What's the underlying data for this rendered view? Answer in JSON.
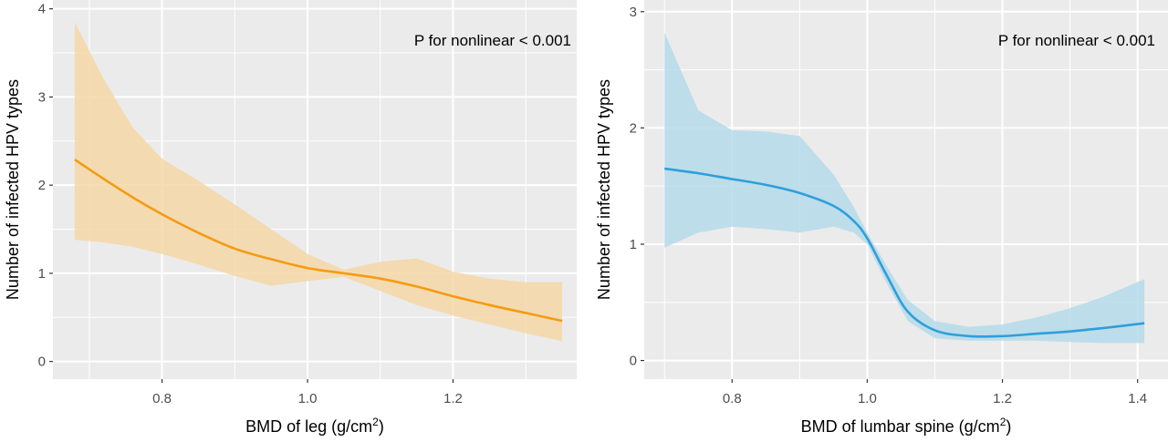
{
  "chart_data": [
    {
      "type": "line",
      "xlabel_main": "BMD of leg (g/cm",
      "xlabel_sup": "2",
      "xlabel_end": ")",
      "ylabel": "Number of infected HPV types",
      "annotation": "P for nonlinear < 0.001",
      "xlim": [
        0.65,
        1.37
      ],
      "ylim": [
        -0.2,
        4.1
      ],
      "xticks": [
        0.8,
        1.0,
        1.2
      ],
      "xtick_labels": [
        "0.8",
        "1.0",
        "1.2"
      ],
      "yticks": [
        0,
        1,
        2,
        3,
        4
      ],
      "ytick_labels": [
        "0",
        "1",
        "2",
        "3",
        "4"
      ],
      "grid": true,
      "line_color": "#F39C12",
      "band_color": "#F6D7A7",
      "x": [
        0.68,
        0.72,
        0.76,
        0.8,
        0.85,
        0.9,
        0.95,
        1.0,
        1.05,
        1.1,
        1.15,
        1.2,
        1.25,
        1.3,
        1.35
      ],
      "y": [
        2.29,
        2.07,
        1.86,
        1.67,
        1.46,
        1.28,
        1.16,
        1.06,
        1.0,
        0.94,
        0.85,
        0.74,
        0.64,
        0.55,
        0.46
      ],
      "lower": [
        1.38,
        1.35,
        1.3,
        1.22,
        1.1,
        0.97,
        0.86,
        0.91,
        0.96,
        0.8,
        0.64,
        0.52,
        0.42,
        0.32,
        0.23
      ],
      "upper": [
        3.85,
        3.2,
        2.65,
        2.3,
        2.05,
        1.78,
        1.5,
        1.22,
        1.04,
        1.13,
        1.17,
        1.02,
        0.94,
        0.9,
        0.9
      ]
    },
    {
      "type": "line",
      "xlabel_main": "BMD of lumbar spine (g/cm",
      "xlabel_sup": "2",
      "xlabel_end": ")",
      "ylabel": "Number of infected HPV types",
      "annotation": "P for nonlinear < 0.001",
      "xlim": [
        0.67,
        1.445
      ],
      "ylim": [
        -0.16,
        3.1
      ],
      "xticks": [
        0.8,
        1.0,
        1.2,
        1.4
      ],
      "xtick_labels": [
        "0.8",
        "1.0",
        "1.2",
        "1.4"
      ],
      "yticks": [
        0,
        1,
        2,
        3
      ],
      "ytick_labels": [
        "0",
        "1",
        "2",
        "3"
      ],
      "grid": true,
      "line_color": "#2E9FDB",
      "band_color": "#B5DAEA",
      "x": [
        0.7,
        0.75,
        0.8,
        0.85,
        0.9,
        0.95,
        0.98,
        1.0,
        1.03,
        1.06,
        1.1,
        1.15,
        1.2,
        1.25,
        1.3,
        1.35,
        1.41
      ],
      "y": [
        1.65,
        1.61,
        1.56,
        1.51,
        1.44,
        1.33,
        1.2,
        1.05,
        0.72,
        0.42,
        0.26,
        0.21,
        0.21,
        0.23,
        0.25,
        0.28,
        0.32
      ],
      "lower": [
        0.97,
        1.1,
        1.15,
        1.13,
        1.1,
        1.15,
        1.1,
        1.0,
        0.65,
        0.34,
        0.19,
        0.17,
        0.17,
        0.17,
        0.16,
        0.15,
        0.15
      ],
      "upper": [
        2.82,
        2.15,
        1.98,
        1.97,
        1.93,
        1.6,
        1.32,
        1.1,
        0.8,
        0.52,
        0.34,
        0.29,
        0.31,
        0.37,
        0.45,
        0.55,
        0.7
      ]
    }
  ]
}
